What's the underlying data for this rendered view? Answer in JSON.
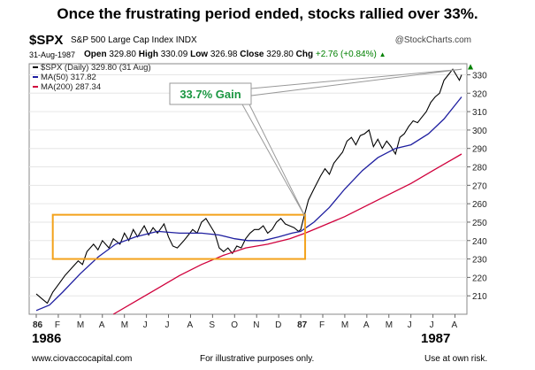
{
  "headline": "Once the frustrating period ended, stocks rallied over 33%.",
  "header": {
    "symbol": "$SPX",
    "name": "S&P 500 Large Cap Index INDX",
    "credit": "@StockCharts.com",
    "date": "31-Aug-1987",
    "open_label": "Open",
    "open": "329.80",
    "high_label": "High",
    "high": "330.09",
    "low_label": "Low",
    "low": "326.98",
    "close_label": "Close",
    "close": "329.80",
    "chg_label": "Chg",
    "chg": "+2.76 (+0.84%)",
    "chg_icon": "up-triangle-icon"
  },
  "legend": [
    {
      "text": "$SPX (Daily) 329.80 (31 Aug)",
      "color": "#000000"
    },
    {
      "text": "MA(50) 317.82",
      "color": "#1f1fa0"
    },
    {
      "text": "MA(200) 287.34",
      "color": "#d0003c"
    }
  ],
  "annotation": {
    "text": "33.7% Gain",
    "color": "#1a9641",
    "box_color": "#f3a21b"
  },
  "footer": {
    "left": "www.ciovaccocapital.com",
    "center": "For illustrative purposes only.",
    "right": "Use at own risk.",
    "year_left": "1986",
    "year_right": "1987"
  },
  "chart_data": {
    "type": "line",
    "x_tick_labels": [
      "86",
      "F",
      "M",
      "A",
      "M",
      "J",
      "J",
      "A",
      "S",
      "O",
      "N",
      "D",
      "87",
      "F",
      "M",
      "A",
      "M",
      "J",
      "J",
      "A"
    ],
    "y_ticks": [
      210,
      220,
      230,
      240,
      250,
      260,
      270,
      280,
      290,
      300,
      310,
      320,
      330
    ],
    "ylim": [
      200,
      336
    ],
    "series": [
      {
        "name": "$SPX (Daily)",
        "color": "#000000",
        "points": [
          [
            0,
            211
          ],
          [
            0.3,
            208
          ],
          [
            0.5,
            206
          ],
          [
            0.75,
            212
          ],
          [
            1,
            216
          ],
          [
            1.3,
            221
          ],
          [
            1.6,
            225
          ],
          [
            1.9,
            229
          ],
          [
            2.1,
            227
          ],
          [
            2.3,
            234
          ],
          [
            2.6,
            238
          ],
          [
            2.8,
            235
          ],
          [
            3,
            240
          ],
          [
            3.3,
            236
          ],
          [
            3.5,
            241
          ],
          [
            3.8,
            238
          ],
          [
            4,
            244
          ],
          [
            4.2,
            240
          ],
          [
            4.4,
            246
          ],
          [
            4.6,
            242
          ],
          [
            4.9,
            248
          ],
          [
            5.1,
            243
          ],
          [
            5.3,
            247
          ],
          [
            5.5,
            244
          ],
          [
            5.8,
            249
          ],
          [
            6,
            242
          ],
          [
            6.2,
            237
          ],
          [
            6.4,
            236
          ],
          [
            6.7,
            240
          ],
          [
            6.9,
            243
          ],
          [
            7.1,
            246
          ],
          [
            7.3,
            244
          ],
          [
            7.5,
            250
          ],
          [
            7.7,
            252
          ],
          [
            7.9,
            248
          ],
          [
            8.1,
            244
          ],
          [
            8.3,
            236
          ],
          [
            8.5,
            234
          ],
          [
            8.7,
            236
          ],
          [
            8.9,
            233
          ],
          [
            9.1,
            237
          ],
          [
            9.3,
            236
          ],
          [
            9.5,
            241
          ],
          [
            9.7,
            244
          ],
          [
            9.9,
            246
          ],
          [
            10.1,
            246
          ],
          [
            10.3,
            248
          ],
          [
            10.5,
            244
          ],
          [
            10.7,
            246
          ],
          [
            10.9,
            250
          ],
          [
            11.1,
            252
          ],
          [
            11.3,
            249
          ],
          [
            11.5,
            248
          ],
          [
            11.7,
            247
          ],
          [
            11.9,
            245
          ],
          [
            12,
            246
          ],
          [
            12.15,
            253
          ],
          [
            12.35,
            262
          ],
          [
            12.6,
            268
          ],
          [
            12.9,
            275
          ],
          [
            13.1,
            279
          ],
          [
            13.3,
            276
          ],
          [
            13.5,
            282
          ],
          [
            13.7,
            285
          ],
          [
            13.9,
            288
          ],
          [
            14.1,
            294
          ],
          [
            14.3,
            296
          ],
          [
            14.5,
            292
          ],
          [
            14.7,
            297
          ],
          [
            14.9,
            298
          ],
          [
            15.1,
            300
          ],
          [
            15.3,
            291
          ],
          [
            15.5,
            295
          ],
          [
            15.7,
            290
          ],
          [
            15.9,
            294
          ],
          [
            16.1,
            291
          ],
          [
            16.3,
            287
          ],
          [
            16.5,
            296
          ],
          [
            16.7,
            298
          ],
          [
            16.9,
            302
          ],
          [
            17.1,
            305
          ],
          [
            17.3,
            304
          ],
          [
            17.5,
            307
          ],
          [
            17.7,
            310
          ],
          [
            17.9,
            315
          ],
          [
            18.1,
            318
          ],
          [
            18.3,
            320
          ],
          [
            18.5,
            327
          ],
          [
            18.7,
            330
          ],
          [
            18.9,
            333
          ],
          [
            19.05,
            330
          ],
          [
            19.2,
            327
          ],
          [
            19.3,
            330
          ]
        ]
      },
      {
        "name": "MA(50)",
        "color": "#1f1fa0",
        "points": [
          [
            0,
            202
          ],
          [
            0.6,
            205
          ],
          [
            1.2,
            212
          ],
          [
            2,
            222
          ],
          [
            2.8,
            231
          ],
          [
            3.6,
            238
          ],
          [
            4.5,
            242
          ],
          [
            5.5,
            245
          ],
          [
            6.5,
            244
          ],
          [
            7.5,
            244
          ],
          [
            8.3,
            243
          ],
          [
            9,
            241
          ],
          [
            9.6,
            240
          ],
          [
            10.3,
            240
          ],
          [
            11,
            242
          ],
          [
            11.6,
            244
          ],
          [
            12,
            245
          ],
          [
            12.6,
            250
          ],
          [
            13.3,
            258
          ],
          [
            14,
            268
          ],
          [
            14.8,
            278
          ],
          [
            15.5,
            285
          ],
          [
            16.3,
            290
          ],
          [
            17,
            292
          ],
          [
            17.8,
            298
          ],
          [
            18.5,
            306
          ],
          [
            19.3,
            318
          ]
        ]
      },
      {
        "name": "MA(200)",
        "color": "#d0003c",
        "points": [
          [
            3.5,
            200
          ],
          [
            4.5,
            207
          ],
          [
            5.5,
            214
          ],
          [
            6.5,
            221
          ],
          [
            7.5,
            227
          ],
          [
            8.5,
            232
          ],
          [
            9.5,
            236
          ],
          [
            10.5,
            238
          ],
          [
            11.5,
            241
          ],
          [
            12.2,
            244
          ],
          [
            13,
            248
          ],
          [
            14,
            253
          ],
          [
            15,
            259
          ],
          [
            16,
            265
          ],
          [
            17,
            271
          ],
          [
            18,
            278
          ],
          [
            19.3,
            287
          ]
        ]
      }
    ],
    "highlight_range": {
      "x": [
        0.75,
        12.2
      ],
      "y": [
        230,
        254
      ]
    },
    "annotation_target": [
      [
        12.2,
        253
      ],
      [
        19.3,
        333
      ]
    ]
  }
}
